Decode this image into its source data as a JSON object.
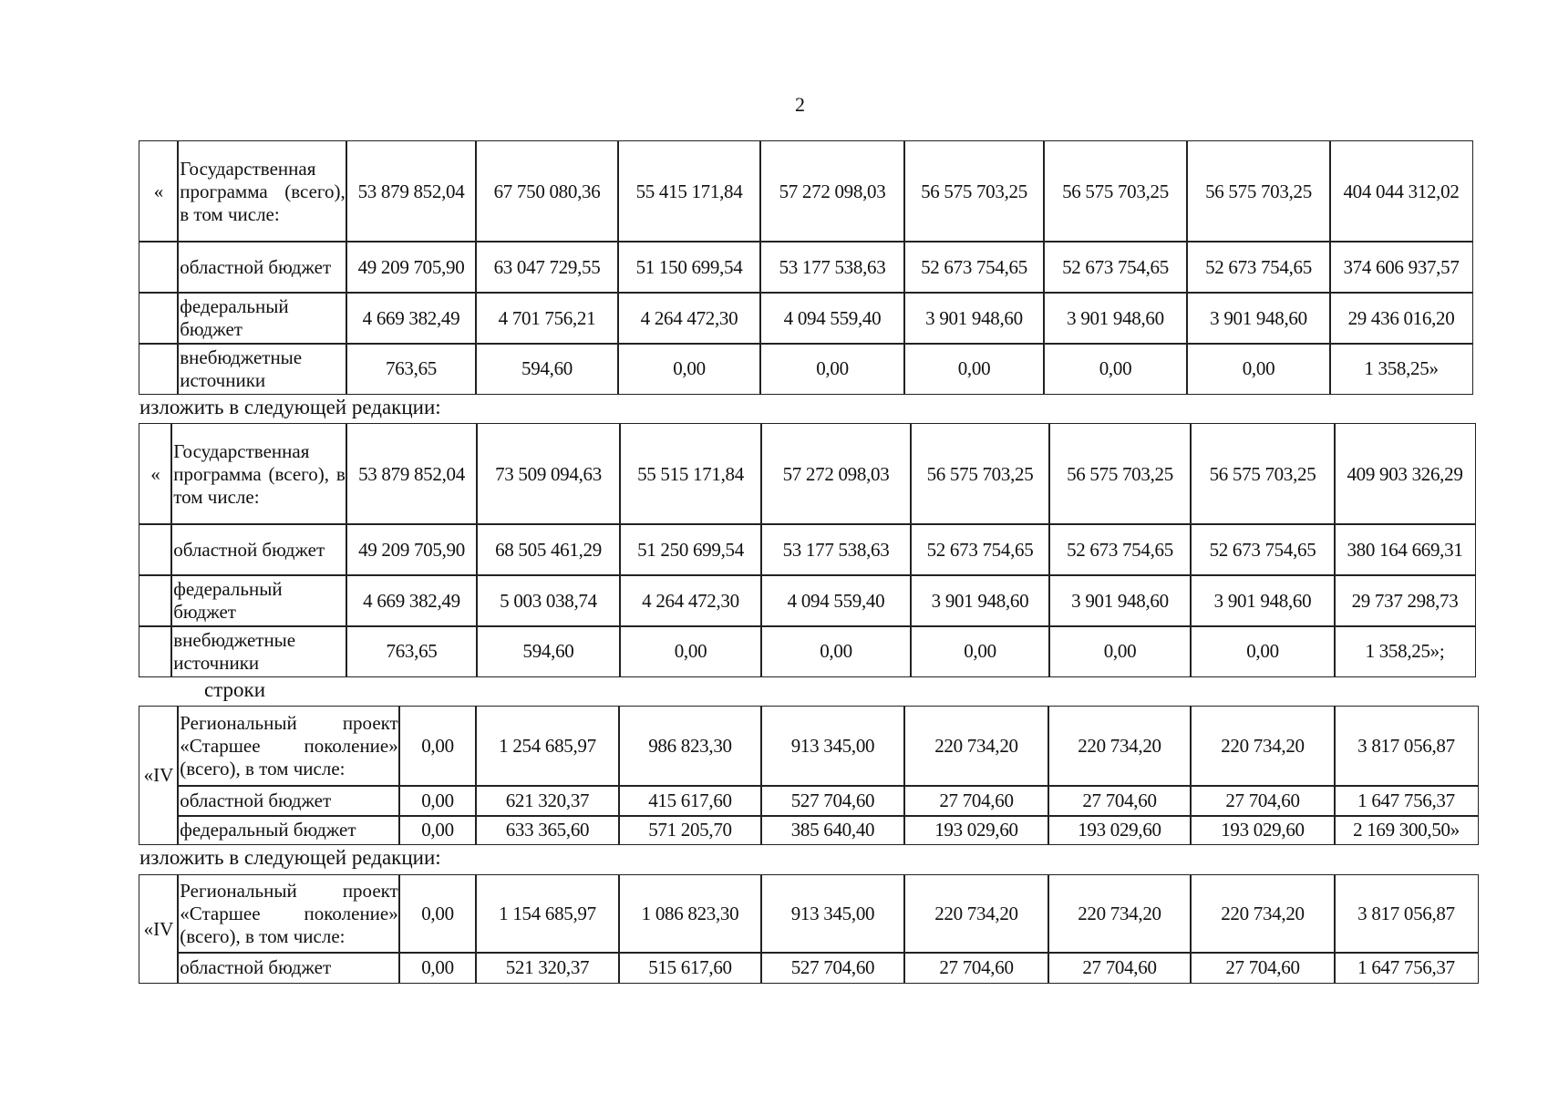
{
  "page_number": "2",
  "instructions": {
    "replace_1": "изложить в следующей редакции:",
    "rows_word": "строки",
    "replace_2": "изложить в следующей редакции:"
  },
  "tables": [
    {
      "marker": "«",
      "rows": [
        {
          "label": "Государственная программа (всего), в том числе:",
          "values": [
            "53 879 852,04",
            "67 750 080,36",
            "55 415 171,84",
            "57 272 098,03",
            "56 575 703,25",
            "56 575 703,25",
            "56 575 703,25",
            "404 044 312,02"
          ]
        },
        {
          "label": "областной бюджет",
          "values": [
            "49 209 705,90",
            "63 047 729,55",
            "51 150 699,54",
            "53 177 538,63",
            "52 673 754,65",
            "52 673 754,65",
            "52 673 754,65",
            "374 606 937,57"
          ]
        },
        {
          "label": "федеральный бюджет",
          "values": [
            "4 669 382,49",
            "4 701 756,21",
            "4 264 472,30",
            "4 094 559,40",
            "3 901 948,60",
            "3 901 948,60",
            "3 901 948,60",
            "29 436 016,20"
          ]
        },
        {
          "label": "внебюджетные источники",
          "values": [
            "763,65",
            "594,60",
            "0,00",
            "0,00",
            "0,00",
            "0,00",
            "0,00",
            "1 358,25»"
          ]
        }
      ]
    },
    {
      "marker": "«",
      "rows": [
        {
          "label": "Государственная программа (всего), в том числе:",
          "values": [
            "53 879 852,04",
            "73 509 094,63",
            "55 515 171,84",
            "57 272 098,03",
            "56 575 703,25",
            "56 575 703,25",
            "56 575 703,25",
            "409 903 326,29"
          ]
        },
        {
          "label": "областной бюджет",
          "values": [
            "49 209 705,90",
            "68 505 461,29",
            "51 250 699,54",
            "53 177 538,63",
            "52 673 754,65",
            "52 673 754,65",
            "52 673 754,65",
            "380 164 669,31"
          ]
        },
        {
          "label": "федеральный бюджет",
          "values": [
            "4 669 382,49",
            "5 003 038,74",
            "4 264 472,30",
            "4 094 559,40",
            "3 901 948,60",
            "3 901 948,60",
            "3 901 948,60",
            "29 737 298,73"
          ]
        },
        {
          "label": "внебюджетные источники",
          "values": [
            "763,65",
            "594,60",
            "0,00",
            "0,00",
            "0,00",
            "0,00",
            "0,00",
            "1 358,25»;"
          ]
        }
      ]
    },
    {
      "marker": "«IV",
      "rows": [
        {
          "label": "Региональный проект «Старшее поколение» (всего), в том числе:",
          "values": [
            "0,00",
            "1 254 685,97",
            "986 823,30",
            "913 345,00",
            "220 734,20",
            "220 734,20",
            "220 734,20",
            "3 817 056,87"
          ]
        },
        {
          "label": "областной бюджет",
          "values": [
            "0,00",
            "621 320,37",
            "415 617,60",
            "527 704,60",
            "27 704,60",
            "27 704,60",
            "27 704,60",
            "1 647 756,37"
          ]
        },
        {
          "label": "федеральный бюджет",
          "values": [
            "0,00",
            "633 365,60",
            "571 205,70",
            "385 640,40",
            "193 029,60",
            "193 029,60",
            "193 029,60",
            "2 169 300,50»"
          ]
        }
      ]
    },
    {
      "marker": "«IV",
      "rows": [
        {
          "label": "Региональный проект «Старшее поколение» (всего), в том числе:",
          "values": [
            "0,00",
            "1 154 685,97",
            "1 086 823,30",
            "913 345,00",
            "220 734,20",
            "220 734,20",
            "220 734,20",
            "3 817 056,87"
          ]
        },
        {
          "label": "областной бюджет",
          "values": [
            "0,00",
            "521 320,37",
            "515 617,60",
            "527 704,60",
            "27 704,60",
            "27 704,60",
            "27 704,60",
            "1 647 756,37"
          ]
        }
      ]
    }
  ]
}
